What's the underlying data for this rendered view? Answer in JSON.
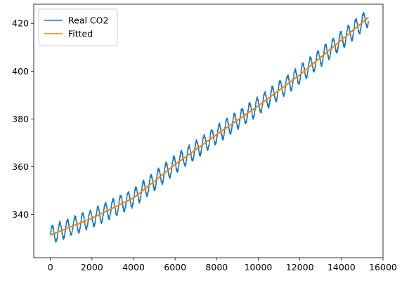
{
  "chart_data": {
    "type": "line",
    "title": "",
    "xlabel": "",
    "ylabel": "",
    "xlim": [
      -800,
      16000
    ],
    "ylim": [
      322,
      428
    ],
    "xticks": [
      0,
      2000,
      4000,
      6000,
      8000,
      10000,
      12000,
      14000,
      16000
    ],
    "yticks": [
      340,
      360,
      380,
      400,
      420
    ],
    "xtick_labels": [
      "0",
      "2000",
      "4000",
      "6000",
      "8000",
      "10000",
      "12000",
      "14000",
      "16000"
    ],
    "ytick_labels": [
      "340",
      "360",
      "380",
      "400",
      "420"
    ],
    "grid": false,
    "legend_position": "upper-left",
    "series": [
      {
        "name": "Real CO2",
        "color": "#1f77b4",
        "x_start": 0,
        "x_end": 15300,
        "seasonal_amplitude": 3.5,
        "cycle_length": 365,
        "trend_points": [
          [
            0,
            331.5
          ],
          [
            2000,
            338.5
          ],
          [
            4000,
            347
          ],
          [
            6000,
            361
          ],
          [
            8000,
            373.5
          ],
          [
            10000,
            385.5
          ],
          [
            12000,
            398.5
          ],
          [
            14000,
            413
          ],
          [
            15300,
            422.5
          ]
        ]
      },
      {
        "name": "Fitted",
        "color": "#ff7f0e",
        "x": [
          0,
          2000,
          4000,
          6000,
          8000,
          10000,
          12000,
          14000,
          15300
        ],
        "y": [
          331.5,
          338.5,
          347,
          361,
          373.5,
          385.5,
          398.5,
          413,
          422.5
        ]
      }
    ]
  }
}
